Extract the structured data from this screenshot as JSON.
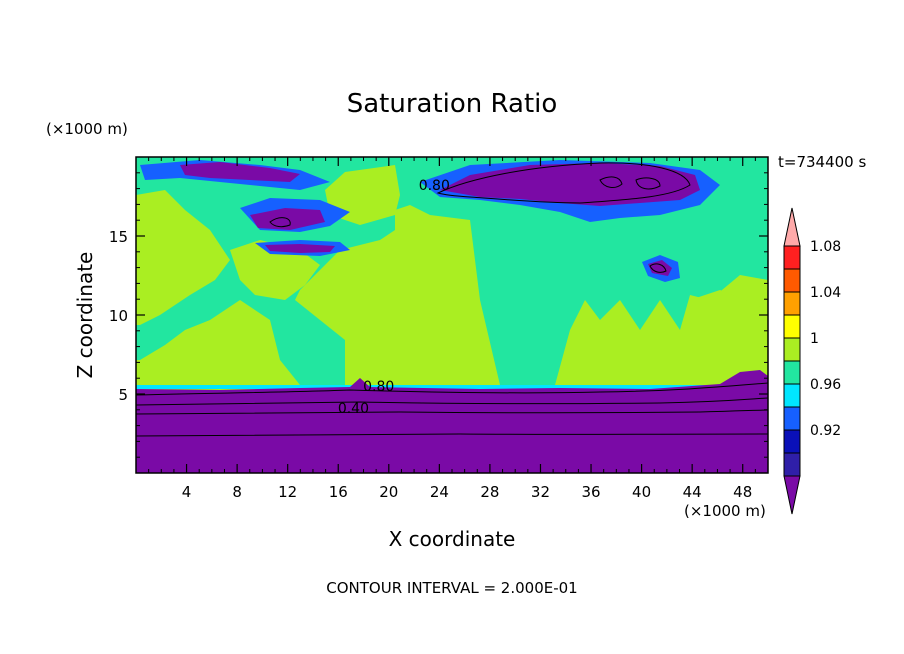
{
  "chart_data": {
    "type": "heatmap",
    "title": "Saturation Ratio",
    "xlabel": "X coordinate",
    "ylabel": "Z coordinate",
    "x_units": "(×1000 m)",
    "y_units": "(×1000 m)",
    "time_label": "t=734400 s",
    "footer": "CONTOUR INTERVAL = 2.000E-01",
    "xlim": [
      0,
      50
    ],
    "ylim": [
      0,
      20
    ],
    "x_ticks": [
      4,
      8,
      12,
      16,
      20,
      24,
      28,
      32,
      36,
      40,
      44,
      48
    ],
    "y_ticks": [
      5,
      10,
      15
    ],
    "contour_labels": [
      {
        "text": "0.80",
        "x": 23.6,
        "y": 17.9
      },
      {
        "text": "0.80",
        "x": 19.2,
        "y": 5.2
      },
      {
        "text": "0.40",
        "x": 17.2,
        "y": 3.8
      }
    ],
    "colorbar": {
      "levels": [
        0.92,
        0.96,
        1,
        1.04,
        1.08
      ],
      "tick_labels": [
        "0.92",
        "0.96",
        "1",
        "1.04",
        "1.08"
      ],
      "colors": [
        "#7a0aa6",
        "#2f1fa8",
        "#0a10b8",
        "#1660ff",
        "#00e6ff",
        "#22e6a0",
        "#aaee22",
        "#ffff00",
        "#ffa000",
        "#ff5a00",
        "#ff2020",
        "#ffaaaa"
      ]
    },
    "field_colors": {
      "dry": "#7a0aa6",
      "near_saturated": "#22e6a0",
      "saturated": "#aaee22",
      "blue": "#1660ff"
    }
  }
}
